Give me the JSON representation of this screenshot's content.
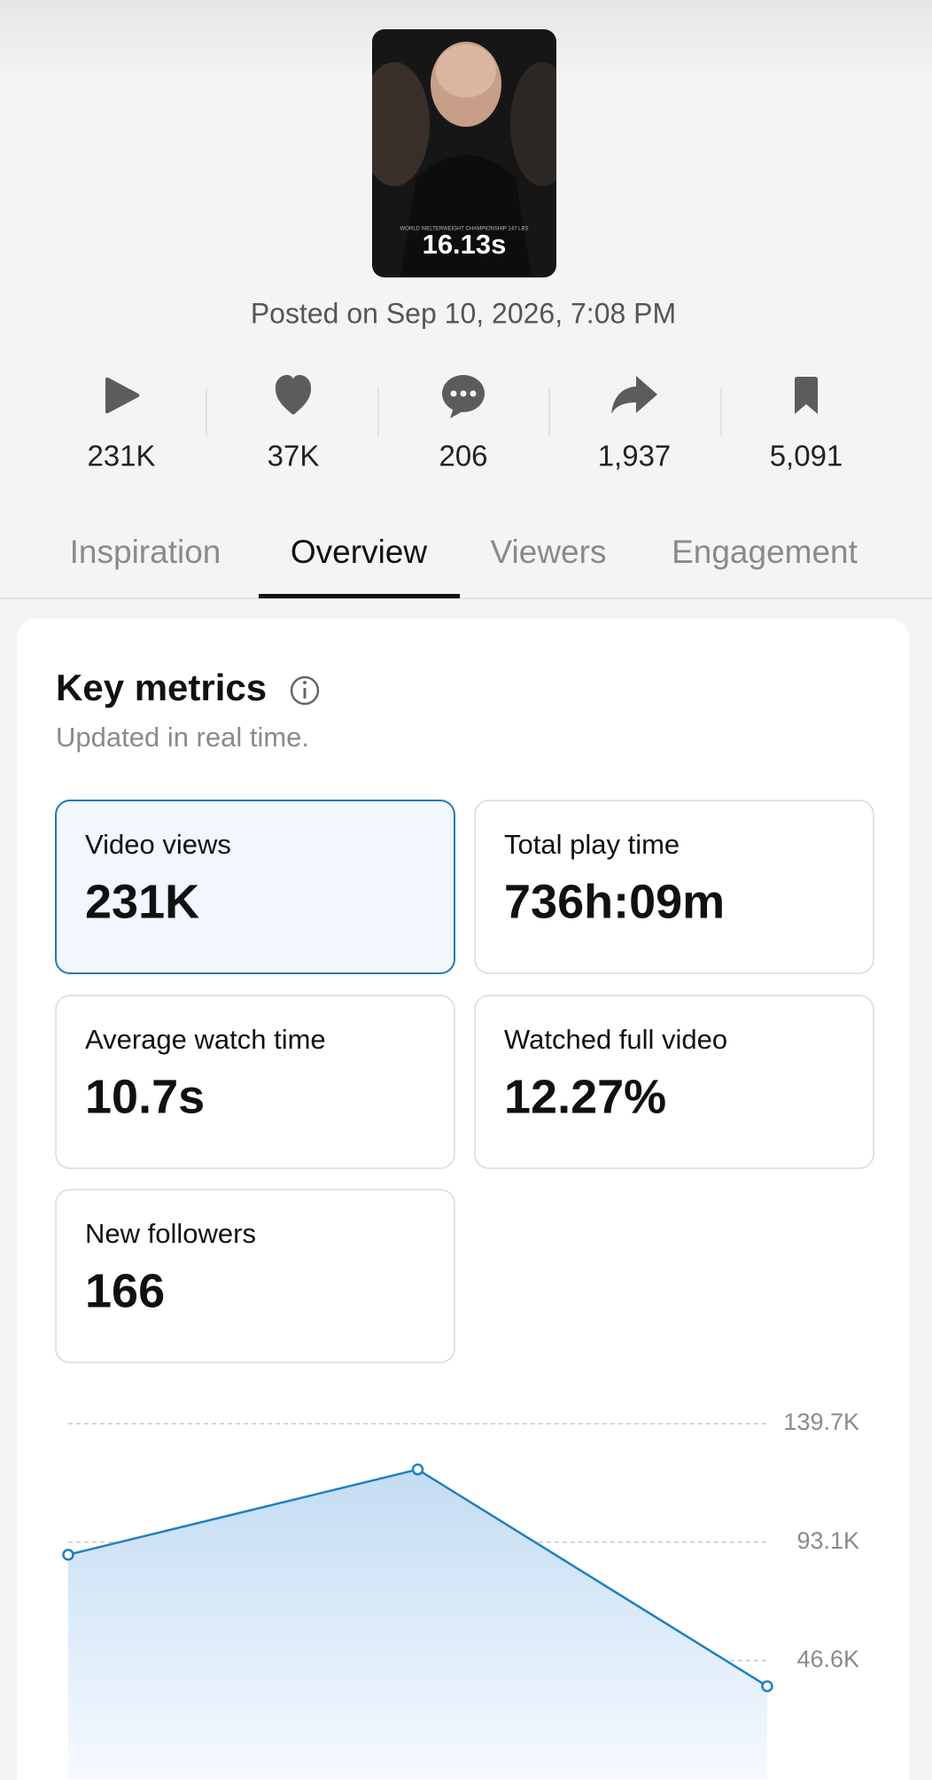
{
  "video": {
    "thumbnail_caption": "WORLD WELTERWEIGHT CHAMPIONSHIP 147 LBS",
    "duration": "16.13s",
    "posted": "Posted on Sep 10, 2026, 7:08 PM"
  },
  "stats": [
    "231K",
    "37K",
    "206",
    "1,937",
    "5,091"
  ],
  "tabs": [
    "Inspiration",
    "Overview",
    "Viewers",
    "Engagement"
  ],
  "key_metrics": {
    "title": "Key metrics",
    "subtitle": "Updated in real time.",
    "cards": [
      {
        "label": "Video views",
        "value": "231K"
      },
      {
        "label": "Total play time",
        "value": "736h:09m"
      },
      {
        "label": "Average watch time",
        "value": "10.7s"
      },
      {
        "label": "Watched full video",
        "value": "12.27%"
      },
      {
        "label": "New followers",
        "value": "166"
      }
    ]
  },
  "chart_data": {
    "type": "area",
    "categories": [
      null,
      null,
      null
    ],
    "values": [
      88200,
      121700,
      36500
    ],
    "color": "#1f7fc0",
    "ylim": [
      0,
      139700
    ],
    "yticks": [
      {
        "value": 46600,
        "label": "46.6K"
      },
      {
        "value": 93100,
        "label": "93.1K"
      },
      {
        "value": 139700,
        "label": "139.7K"
      }
    ],
    "grid": true
  }
}
